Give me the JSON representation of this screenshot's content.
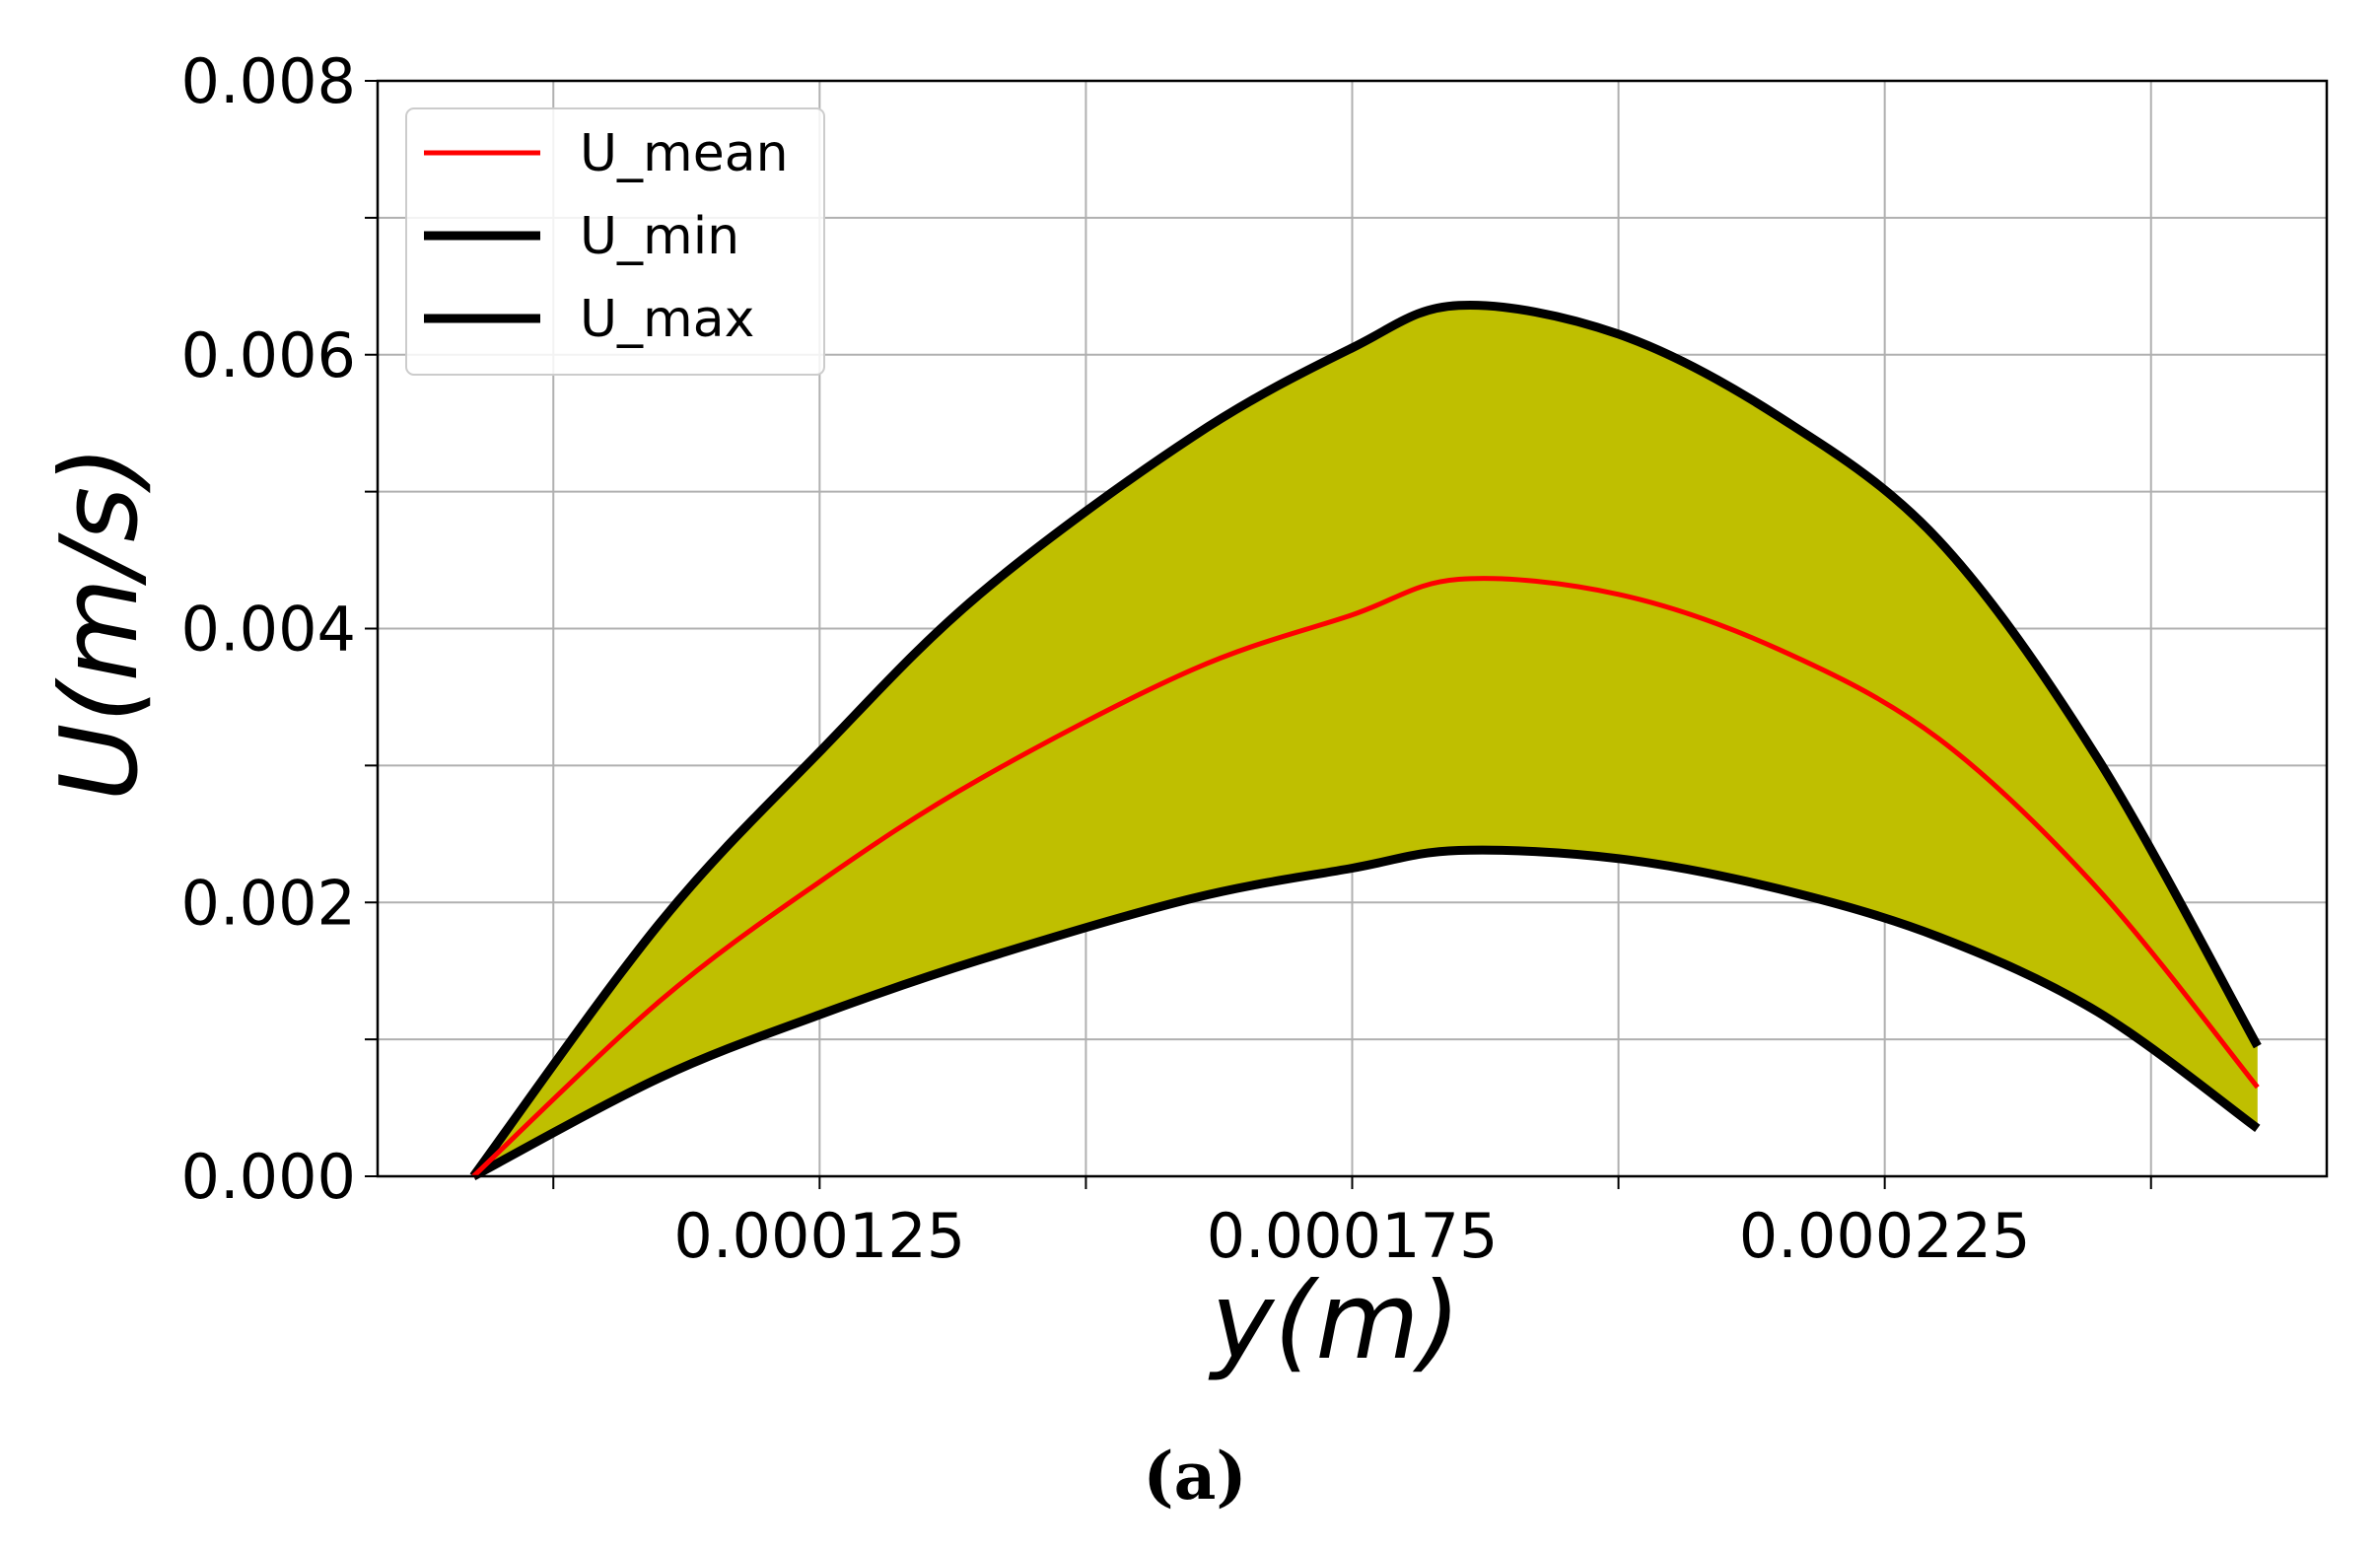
{
  "chart_data": {
    "type": "line",
    "xlabel": "y(m)",
    "ylabel": "U(m/s)",
    "caption": "(a)",
    "xlim": [
      8.35e-05,
      0.0002665
    ],
    "ylim": [
      0,
      0.008
    ],
    "x_ticks": [
      {
        "value": 0.0001,
        "label": ""
      },
      {
        "value": 0.000125,
        "label": "0.000125"
      },
      {
        "value": 0.00015,
        "label": ""
      },
      {
        "value": 0.000175,
        "label": "0.000175"
      },
      {
        "value": 0.0002,
        "label": ""
      },
      {
        "value": 0.000225,
        "label": "0.000225"
      },
      {
        "value": 0.00025,
        "label": ""
      }
    ],
    "y_ticks": [
      {
        "value": 0,
        "label": "0.000"
      },
      {
        "value": 0.001,
        "label": ""
      },
      {
        "value": 0.002,
        "label": "0.002"
      },
      {
        "value": 0.003,
        "label": ""
      },
      {
        "value": 0.004,
        "label": "0.004"
      },
      {
        "value": 0.005,
        "label": ""
      },
      {
        "value": 0.006,
        "label": "0.006"
      },
      {
        "value": 0.007,
        "label": ""
      },
      {
        "value": 0.008,
        "label": "0.008"
      }
    ],
    "grid": true,
    "legend_position": "top-left",
    "fill_between": {
      "lower": "U_min",
      "upper": "U_max",
      "color": "#bfbf00"
    },
    "x": [
      9.25e-05,
      0.00011,
      0.000125,
      0.00014,
      0.00016,
      0.000175,
      0.000185,
      0.0002,
      0.000215,
      0.00023,
      0.000245,
      0.00026
    ],
    "series": [
      {
        "name": "U_mean",
        "color": "#ff0000",
        "width": 5,
        "values": [
          0.0,
          0.00128,
          0.00215,
          0.0029,
          0.0037,
          0.0041,
          0.00436,
          0.00425,
          0.00385,
          0.0032,
          0.0021,
          0.00065
        ]
      },
      {
        "name": "U_min",
        "color": "#000000",
        "width": 9,
        "values": [
          0.0,
          0.00072,
          0.00118,
          0.00158,
          0.00203,
          0.00225,
          0.00238,
          0.00232,
          0.0021,
          0.00175,
          0.0012,
          0.00035
        ]
      },
      {
        "name": "U_max",
        "color": "#000000",
        "width": 9,
        "values": [
          0.0,
          0.00185,
          0.0031,
          0.00425,
          0.0054,
          0.00605,
          0.00636,
          0.00615,
          0.00555,
          0.00465,
          0.00305,
          0.00095
        ]
      }
    ]
  }
}
